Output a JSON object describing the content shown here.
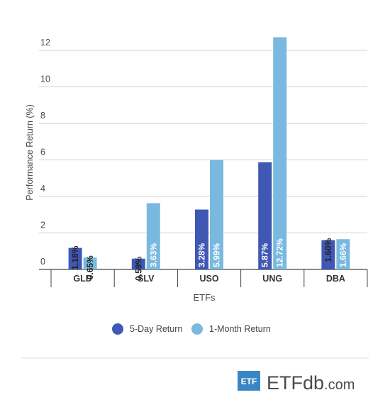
{
  "chart_data": {
    "type": "bar",
    "title": "",
    "xlabel": "ETFs",
    "ylabel": "Performance Return (%)",
    "ylim": [
      0,
      13
    ],
    "yticks": [
      0,
      2,
      4,
      6,
      8,
      10,
      12
    ],
    "grid": true,
    "categories": [
      "GLD",
      "SLV",
      "USO",
      "UNG",
      "DBA"
    ],
    "series": [
      {
        "name": "5-Day Return",
        "color": "#3f58b4",
        "values": [
          1.18,
          0.59,
          3.28,
          5.87,
          1.6
        ],
        "labels": [
          "1.18%",
          "0.59%",
          "3.28%",
          "5.87%",
          "1.60%"
        ]
      },
      {
        "name": "1-Month Return",
        "color": "#7ab9df",
        "values": [
          0.65,
          3.63,
          5.99,
          12.72,
          1.66
        ],
        "labels": [
          "0.65%",
          "3.63%",
          "5.99%",
          "12.72%",
          "1.66%"
        ]
      }
    ],
    "legend_position": "bottom"
  },
  "branding": {
    "badge_text": "ETF",
    "wordmark_main": "ETF",
    "wordmark_db": "db",
    "wordmark_suffix": ".com",
    "badge_color": "#3a86c5",
    "text_color": "#4a4a4a"
  }
}
